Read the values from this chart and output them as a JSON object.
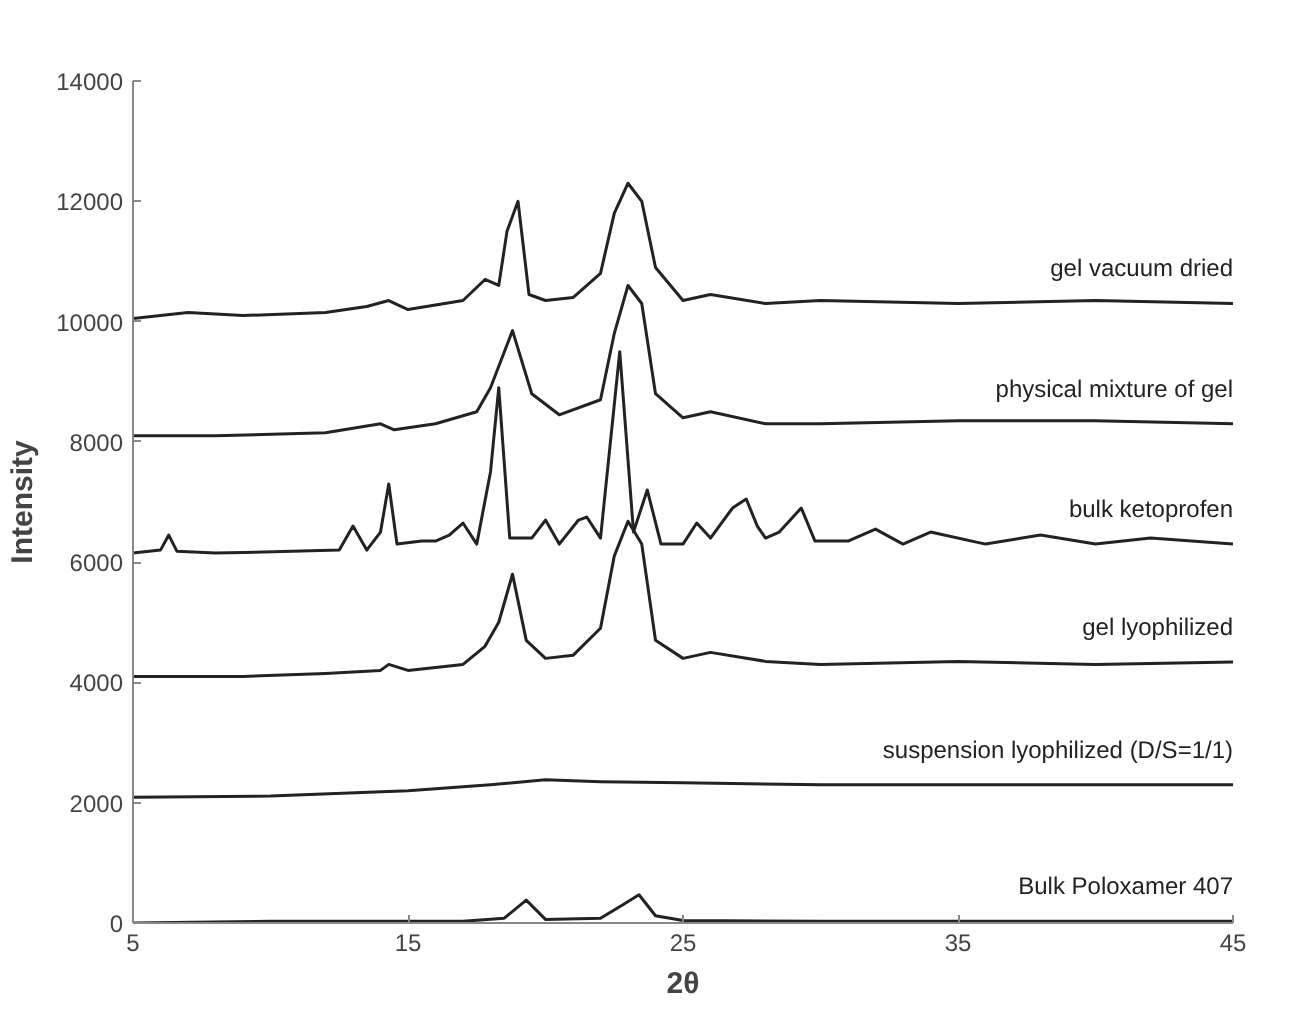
{
  "chart_data": {
    "type": "line",
    "xlabel": "2θ",
    "ylabel": "Intensity",
    "xlim": [
      5,
      45
    ],
    "ylim": [
      0,
      14000
    ],
    "xticks": [
      5,
      15,
      25,
      35,
      45
    ],
    "yticks": [
      0,
      2000,
      4000,
      6000,
      8000,
      10000,
      12000,
      14000
    ],
    "grid": false,
    "marker": "none",
    "line_style": "solid",
    "series": [
      {
        "name": "gel vacuum dried",
        "color": "#222222",
        "x": [
          5,
          7,
          9,
          12,
          13.5,
          14.3,
          15,
          17,
          17.8,
          18.3,
          18.6,
          19,
          19.4,
          20,
          21,
          22,
          22.5,
          23,
          23.5,
          24,
          25,
          26,
          28,
          30,
          35,
          40,
          45
        ],
        "values": [
          10050,
          10150,
          10100,
          10150,
          10250,
          10350,
          10200,
          10350,
          10700,
          10600,
          11500,
          12000,
          10450,
          10350,
          10400,
          10800,
          11800,
          12300,
          12000,
          10900,
          10350,
          10450,
          10300,
          10350,
          10300,
          10350,
          10300
        ]
      },
      {
        "name": "physical mixture of gel",
        "color": "#222222",
        "x": [
          5,
          8,
          12,
          14,
          14.5,
          16,
          17.5,
          18,
          18.8,
          19.5,
          20.5,
          22,
          22.5,
          23,
          23.5,
          24,
          25,
          26,
          28,
          30,
          35,
          40,
          45
        ],
        "values": [
          8100,
          8100,
          8150,
          8300,
          8200,
          8300,
          8500,
          8900,
          9850,
          8800,
          8450,
          8700,
          9800,
          10600,
          10300,
          8800,
          8400,
          8500,
          8300,
          8300,
          8350,
          8350,
          8300
        ]
      },
      {
        "name": "bulk ketoprofen",
        "color": "#222222",
        "x": [
          5,
          6,
          6.3,
          6.6,
          8,
          12.5,
          13,
          13.5,
          14,
          14.3,
          14.6,
          15.5,
          16,
          16.5,
          17,
          17.5,
          18,
          18.3,
          18.7,
          19.5,
          20,
          20.5,
          21.2,
          21.5,
          22,
          22.7,
          23.2,
          23.7,
          24.2,
          25,
          25.5,
          26,
          26.8,
          27.3,
          27.7,
          28,
          28.5,
          29.3,
          29.8,
          31,
          32,
          33,
          34,
          36,
          38,
          40,
          42,
          45
        ],
        "values": [
          6150,
          6200,
          6450,
          6180,
          6150,
          6200,
          6600,
          6200,
          6500,
          7300,
          6300,
          6350,
          6350,
          6450,
          6650,
          6300,
          7500,
          8900,
          6400,
          6400,
          6700,
          6300,
          6700,
          6750,
          6400,
          9500,
          6500,
          7200,
          6300,
          6300,
          6650,
          6400,
          6900,
          7050,
          6600,
          6400,
          6500,
          6900,
          6350,
          6350,
          6550,
          6300,
          6500,
          6300,
          6450,
          6300,
          6400,
          6300
        ]
      },
      {
        "name": "gel lyophilized",
        "color": "#222222",
        "x": [
          5,
          9,
          12,
          14,
          14.3,
          15,
          17,
          17.8,
          18.3,
          18.8,
          19.3,
          20,
          21,
          22,
          22.5,
          23,
          23.5,
          24,
          25,
          26,
          28,
          30,
          35,
          40,
          45
        ],
        "values": [
          4100,
          4100,
          4150,
          4200,
          4300,
          4200,
          4300,
          4600,
          5000,
          5800,
          4700,
          4400,
          4450,
          4900,
          6100,
          6680,
          6300,
          4700,
          4400,
          4500,
          4350,
          4300,
          4350,
          4300,
          4340
        ]
      },
      {
        "name": "suspension lyophilized (D/S=1/1)",
        "color": "#222222",
        "x": [
          5,
          10,
          15,
          18,
          20,
          22,
          25,
          30,
          35,
          40,
          45
        ],
        "values": [
          2090,
          2110,
          2200,
          2300,
          2380,
          2350,
          2330,
          2300,
          2300,
          2300,
          2300
        ]
      },
      {
        "name": "Bulk Poloxamer 407",
        "color": "#222222",
        "x": [
          5,
          10,
          17,
          18.5,
          19.3,
          20,
          22,
          22.8,
          23.4,
          24,
          25,
          30,
          35,
          40,
          45
        ],
        "values": [
          0,
          30,
          30,
          80,
          380,
          60,
          80,
          300,
          470,
          120,
          40,
          30,
          30,
          30,
          30
        ]
      }
    ]
  }
}
